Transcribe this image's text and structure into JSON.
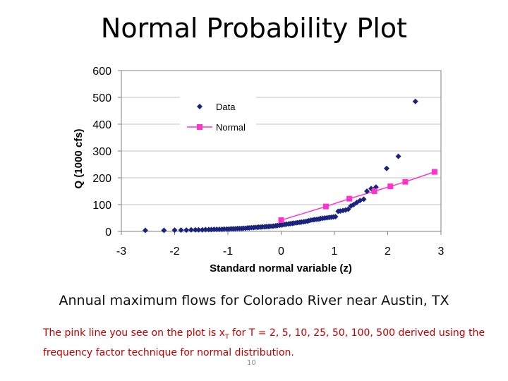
{
  "title": "Normal Probability Plot",
  "caption": "Annual maximum flows for Colorado River near Austin, TX",
  "note": {
    "part1": "The pink line you see on the plot is x",
    "subscript": "T",
    "part2": " for T = 2, 5, 10, 25, 50, 100, 500 derived using the frequency factor technique for normal distribution."
  },
  "page_number": "10",
  "colors": {
    "data": "#1a237e",
    "normal": "#ff33cc",
    "grid": "#c0c0c0"
  },
  "chart_data": {
    "type": "scatter",
    "title": "Normal Probability Plot",
    "xlabel": "Standard normal variable (z)",
    "ylabel": "Q (1000 cfs)",
    "xlim": [
      -3,
      3
    ],
    "ylim": [
      0,
      600
    ],
    "xticks": [
      -3,
      -2,
      -1,
      0,
      1,
      2,
      3
    ],
    "yticks": [
      0,
      100,
      200,
      300,
      400,
      500,
      600
    ],
    "grid": "horizontal",
    "legend": "top-left",
    "series": [
      {
        "name": "Data",
        "marker": "diamond",
        "x": [
          -2.55,
          -2.2,
          -2.0,
          -1.88,
          -1.78,
          -1.69,
          -1.61,
          -1.55,
          -1.48,
          -1.42,
          -1.36,
          -1.31,
          -1.26,
          -1.21,
          -1.16,
          -1.11,
          -1.07,
          -1.02,
          -0.98,
          -0.94,
          -0.9,
          -0.86,
          -0.82,
          -0.78,
          -0.74,
          -0.71,
          -0.67,
          -0.63,
          -0.6,
          -0.56,
          -0.52,
          -0.49,
          -0.45,
          -0.42,
          -0.38,
          -0.35,
          -0.31,
          -0.28,
          -0.24,
          -0.21,
          -0.17,
          -0.14,
          -0.1,
          -0.07,
          -0.03,
          0.0,
          0.03,
          0.07,
          0.1,
          0.14,
          0.17,
          0.21,
          0.24,
          0.28,
          0.31,
          0.35,
          0.38,
          0.42,
          0.45,
          0.49,
          0.52,
          0.56,
          0.6,
          0.63,
          0.67,
          0.71,
          0.74,
          0.78,
          0.82,
          0.86,
          0.9,
          0.94,
          0.98,
          1.02,
          1.07,
          1.11,
          1.16,
          1.21,
          1.26,
          1.31,
          1.36,
          1.42,
          1.48,
          1.55,
          1.61,
          1.69,
          1.78,
          1.98,
          2.2,
          2.52
        ],
        "y": [
          4,
          4,
          5,
          5,
          5,
          6,
          6,
          6,
          6,
          7,
          7,
          7,
          8,
          8,
          8,
          8,
          9,
          9,
          9,
          10,
          10,
          10,
          11,
          11,
          11,
          12,
          12,
          13,
          13,
          14,
          14,
          15,
          15,
          16,
          16,
          17,
          17,
          18,
          18,
          19,
          19,
          20,
          21,
          22,
          23,
          24,
          25,
          26,
          27,
          28,
          29,
          30,
          31,
          32,
          33,
          34,
          35,
          36,
          37,
          38,
          40,
          42,
          43,
          44,
          45,
          46,
          48,
          49,
          50,
          51,
          52,
          53,
          54,
          55,
          75,
          76,
          78,
          80,
          83,
          95,
          100,
          108,
          115,
          120,
          150,
          160,
          165,
          235,
          280,
          485
        ]
      },
      {
        "name": "Normal",
        "marker": "square",
        "x": [
          0.0,
          0.84,
          1.28,
          1.75,
          2.05,
          2.33,
          2.88
        ],
        "y": [
          42,
          93,
          122,
          150,
          168,
          185,
          222
        ]
      }
    ]
  }
}
